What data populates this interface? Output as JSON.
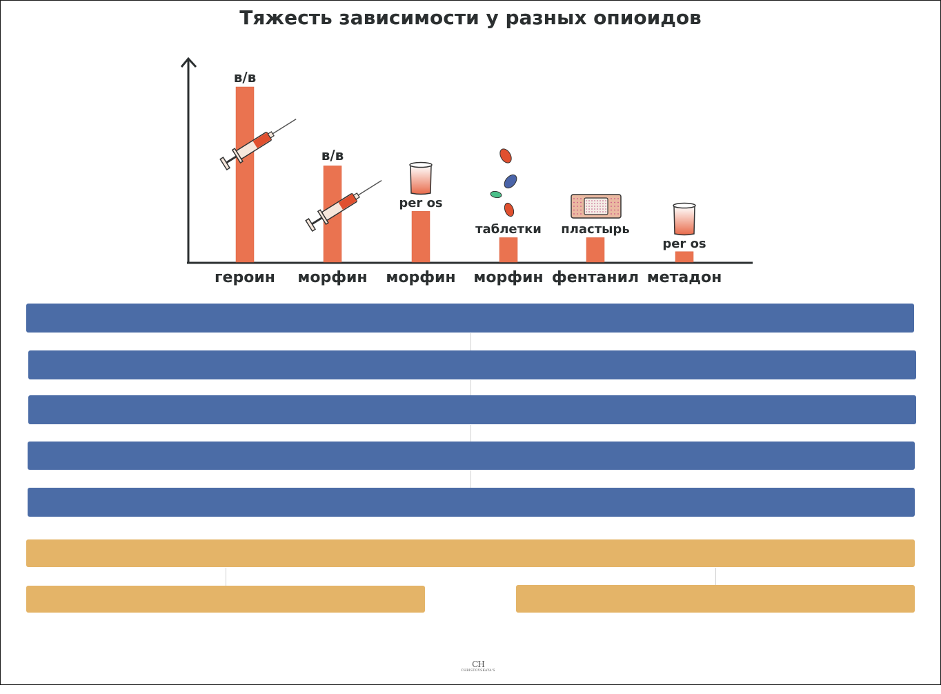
{
  "chart_data": {
    "type": "bar",
    "title": "Тяжесть зависимости у разных опиоидов",
    "categories": [
      "героин",
      "морфин",
      "морфин",
      "морфин",
      "фентанил",
      "метадон"
    ],
    "route_labels": [
      "в/в",
      "в/в",
      "per os",
      "таблетки",
      "пластырь",
      "per os"
    ],
    "route_icons": [
      "syringe-icon",
      "syringe-icon",
      "cup-icon",
      "pills-icon",
      "patch-icon",
      "cup-icon"
    ],
    "values": [
      100,
      55,
      29,
      14,
      14,
      6
    ],
    "ylim": [
      0,
      115
    ],
    "xlabel": "",
    "ylabel": "",
    "grid": false,
    "bar_color": "#ea7350"
  },
  "colors": {
    "blue_band": "#4b6ca6",
    "gold_band": "#e4b468",
    "axis": "#2b2f30"
  },
  "bands": {
    "blue_count": 5,
    "gold_count": 3
  },
  "logo": {
    "monogram": "CH",
    "text": "CHRISTOVSKAYA'S"
  }
}
